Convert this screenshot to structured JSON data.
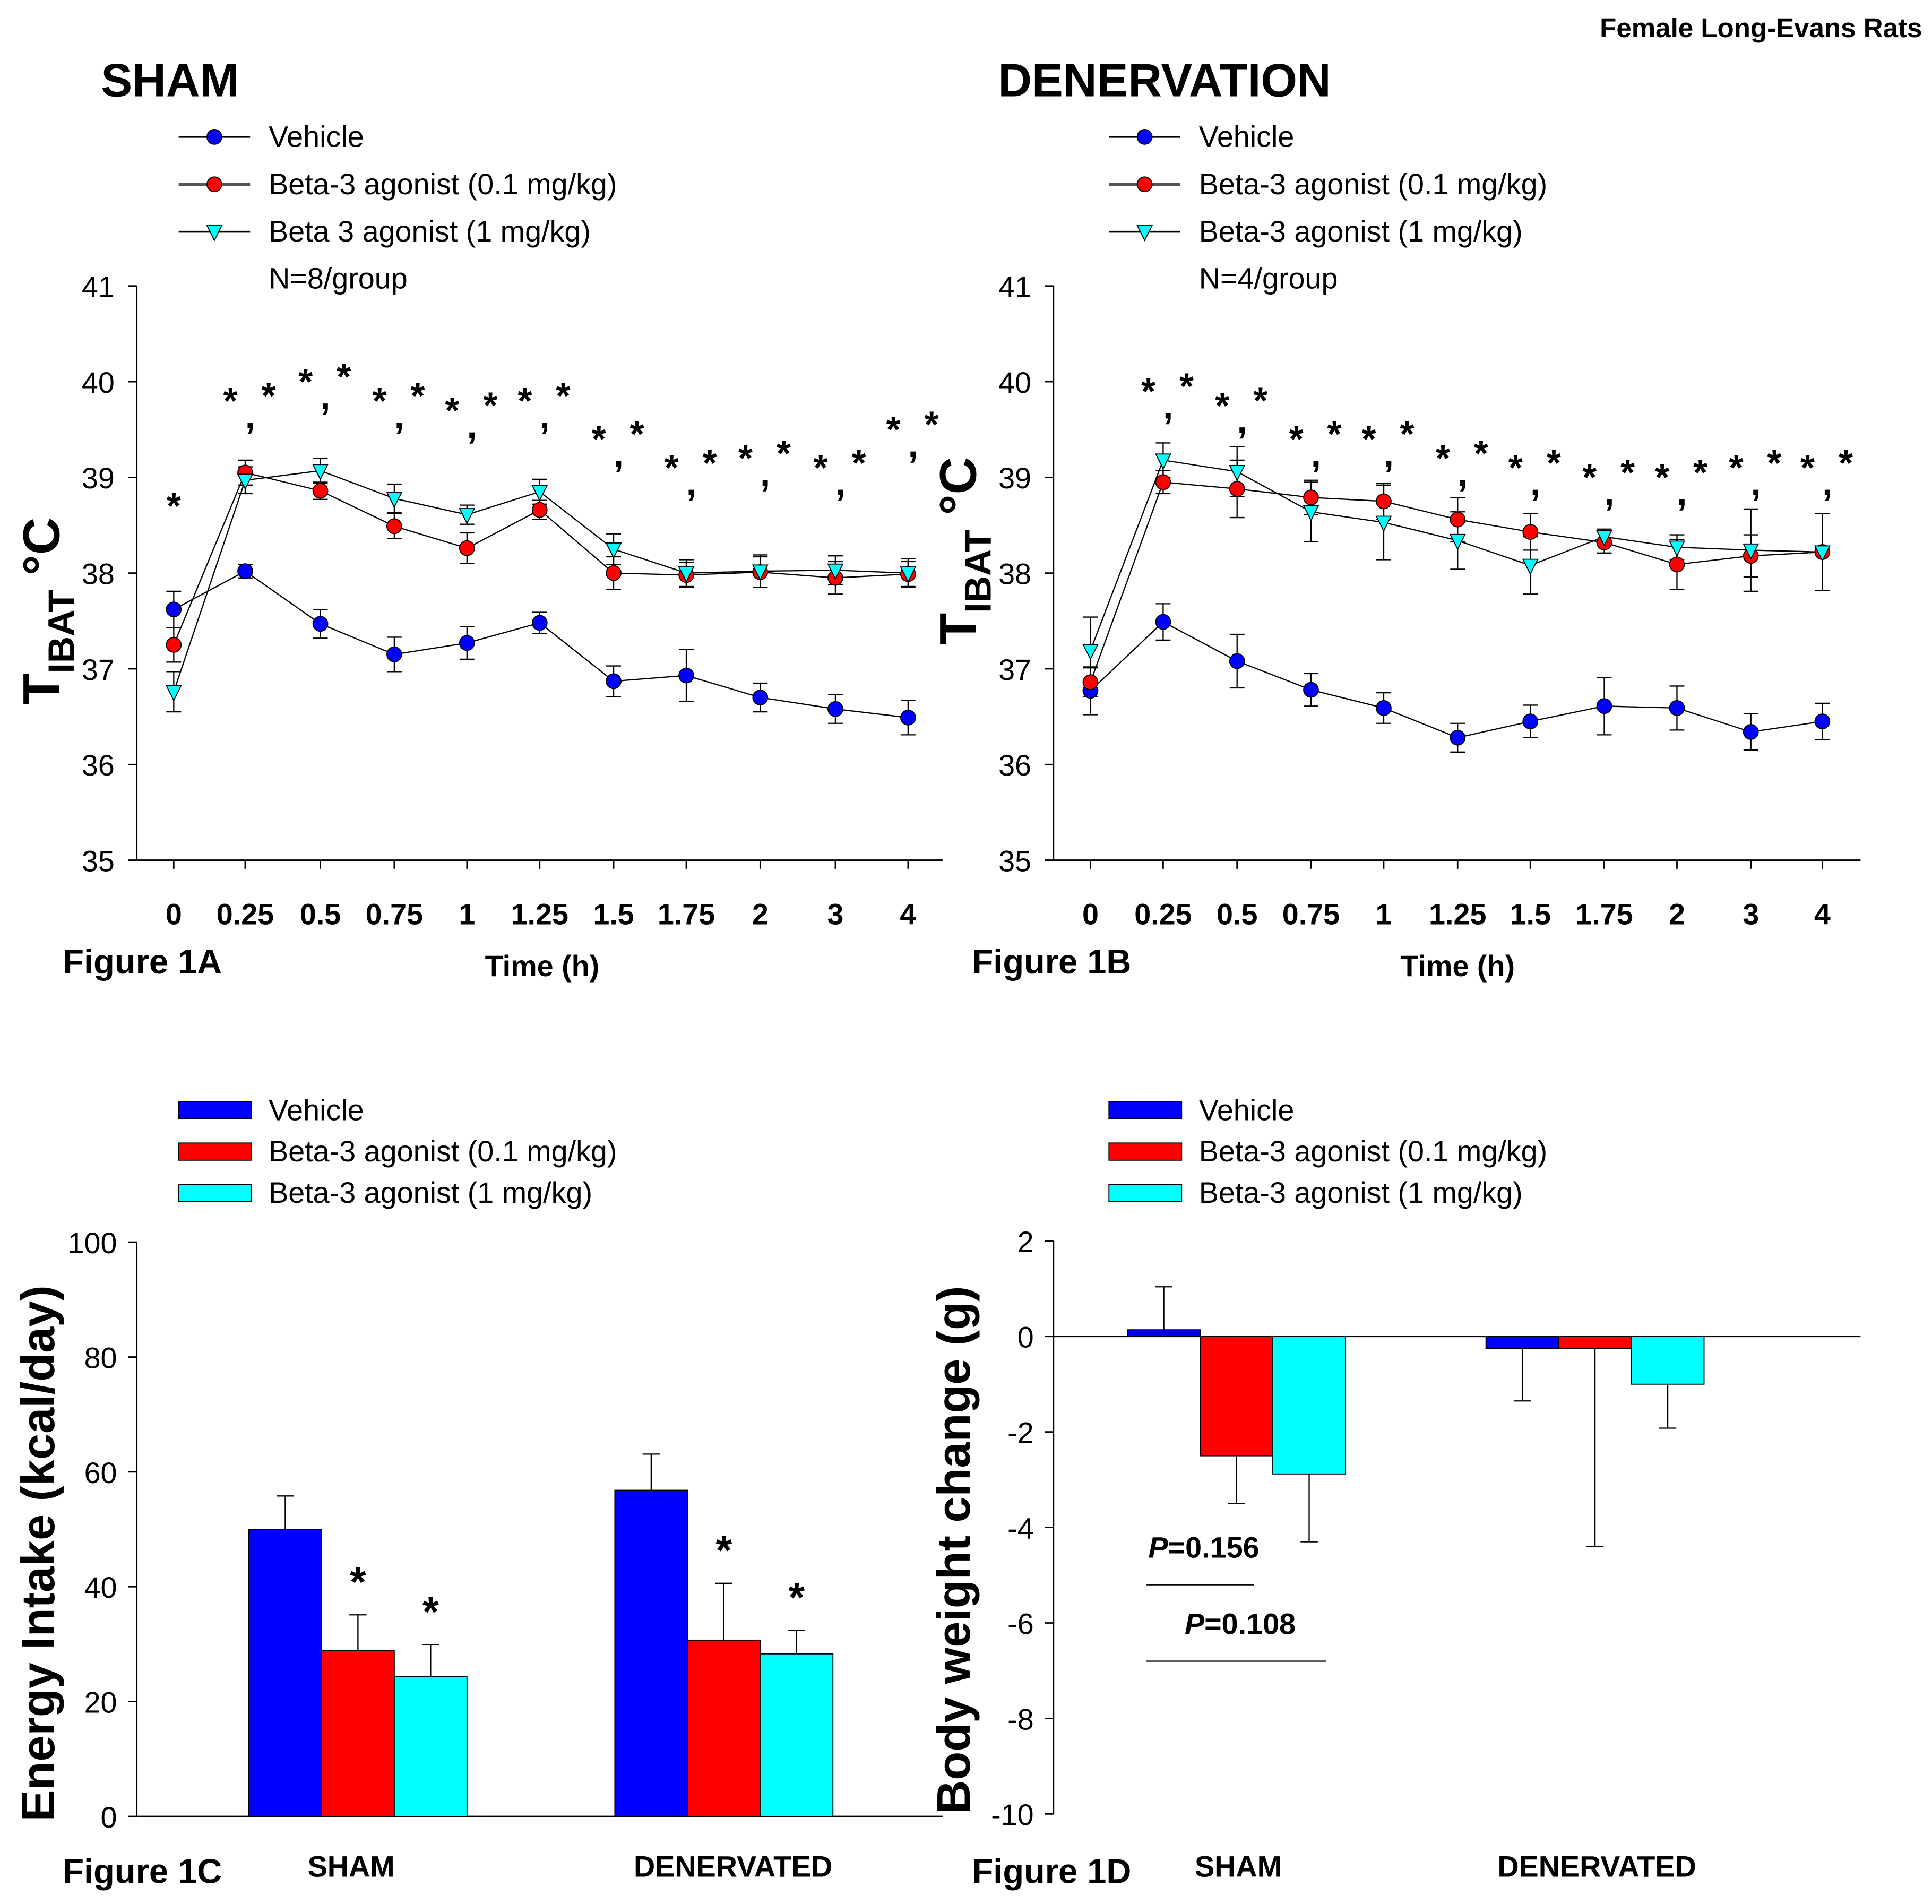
{
  "header": {
    "corner_label": "Female Long-Evans Rats"
  },
  "chart_data": [
    {
      "id": "A",
      "type": "line",
      "panel_title": "SHAM",
      "figure_label": "Figure 1A",
      "xlabel": "Time (h)",
      "ylabel_main": "T",
      "ylabel_sub": "IBAT",
      "ylabel_unit": " °C",
      "note": "N=8/group",
      "categories": [
        "0",
        "0.25",
        "0.5",
        "0.75",
        "1",
        "1.25",
        "1.5",
        "1.75",
        "2",
        "3",
        "4"
      ],
      "ylim": [
        35,
        41
      ],
      "yticks": [
        "35",
        "36",
        "37",
        "38",
        "39",
        "40",
        "41"
      ],
      "series": [
        {
          "name": "Vehicle",
          "marker": "circle",
          "color": "#0000ff",
          "values": [
            37.62,
            38.02,
            37.47,
            37.15,
            37.27,
            37.48,
            36.87,
            36.93,
            36.7,
            36.58,
            36.49
          ],
          "errors": [
            0.19,
            0.07,
            0.15,
            0.18,
            0.17,
            0.11,
            0.16,
            0.27,
            0.15,
            0.15,
            0.18
          ]
        },
        {
          "name": "Beta-3 agonist (0.1 mg/kg)",
          "marker": "circle",
          "color": "#ff0000",
          "values": [
            37.25,
            39.05,
            38.86,
            38.49,
            38.26,
            38.66,
            38.0,
            37.98,
            38.01,
            37.95,
            37.99
          ],
          "errors": [
            0.18,
            0.13,
            0.09,
            0.13,
            0.16,
            0.1,
            0.17,
            0.13,
            0.16,
            0.17,
            0.13
          ]
        },
        {
          "name": "Beta 3 agonist (1 mg/kg)",
          "marker": "triangle-down",
          "color": "#00ffff",
          "values": [
            36.76,
            38.97,
            39.07,
            38.78,
            38.61,
            38.85,
            38.25,
            38.0,
            38.02,
            38.03,
            38.0
          ],
          "errors": [
            0.21,
            0.14,
            0.13,
            0.15,
            0.1,
            0.13,
            0.16,
            0.14,
            0.17,
            0.15,
            0.15
          ]
        }
      ],
      "significance": [
        {
          "x": "0",
          "marks": [
            "*"
          ],
          "level": 38.8
        },
        {
          "x": "0.25",
          "marks": [
            "*",
            ",",
            "*"
          ],
          "level": 39.9
        },
        {
          "x": "0.5",
          "marks": [
            "*",
            ",",
            "*"
          ],
          "level": 40.1
        },
        {
          "x": "0.75",
          "marks": [
            "*",
            ",",
            "*"
          ],
          "level": 39.9
        },
        {
          "x": "1",
          "marks": [
            "*",
            ",",
            "*"
          ],
          "level": 39.8
        },
        {
          "x": "1.25",
          "marks": [
            "*",
            ",",
            "*"
          ],
          "level": 39.9
        },
        {
          "x": "1.5",
          "marks": [
            "*",
            ",",
            "*"
          ],
          "level": 39.5
        },
        {
          "x": "1.75",
          "marks": [
            "*",
            ",",
            "*"
          ],
          "level": 39.2
        },
        {
          "x": "2",
          "marks": [
            "*",
            ",",
            "*"
          ],
          "level": 39.3
        },
        {
          "x": "3",
          "marks": [
            "*",
            ",",
            "*"
          ],
          "level": 39.2
        },
        {
          "x": "4",
          "marks": [
            "*",
            ",",
            "*"
          ],
          "level": 39.6
        }
      ]
    },
    {
      "id": "B",
      "type": "line",
      "panel_title": "DENERVATION",
      "figure_label": "Figure 1B",
      "xlabel": "Time (h)",
      "ylabel_main": "T",
      "ylabel_sub": "IBAT",
      "ylabel_unit": " °C",
      "note": "N=4/group",
      "categories": [
        "0",
        "0.25",
        "0.5",
        "0.75",
        "1",
        "1.25",
        "1.5",
        "1.75",
        "2",
        "3",
        "4"
      ],
      "ylim": [
        35,
        41
      ],
      "yticks": [
        "35",
        "36",
        "37",
        "38",
        "39",
        "40",
        "41"
      ],
      "series": [
        {
          "name": "Vehicle",
          "marker": "circle",
          "color": "#0000ff",
          "values": [
            36.77,
            37.49,
            37.08,
            36.78,
            36.59,
            36.28,
            36.45,
            36.61,
            36.59,
            36.34,
            36.45
          ],
          "errors": [
            0.25,
            0.19,
            0.28,
            0.17,
            0.16,
            0.15,
            0.17,
            0.3,
            0.23,
            0.19,
            0.19
          ]
        },
        {
          "name": "Beta-3 agonist (0.1 mg/kg)",
          "marker": "circle",
          "color": "#ff0000",
          "values": [
            36.86,
            38.95,
            38.88,
            38.79,
            38.75,
            38.56,
            38.43,
            38.32,
            38.09,
            38.18,
            38.22
          ],
          "errors": [
            0.15,
            0.12,
            0.3,
            0.18,
            0.19,
            0.23,
            0.19,
            0.11,
            0.26,
            0.22,
            0.4
          ]
        },
        {
          "name": "Beta-3 agonist (1 mg/kg)",
          "marker": "triangle-down",
          "color": "#00ffff",
          "values": [
            37.19,
            39.18,
            39.06,
            38.64,
            38.53,
            38.34,
            38.08,
            38.38,
            38.27,
            38.24,
            38.22
          ],
          "errors": [
            0.35,
            0.18,
            0.26,
            0.31,
            0.39,
            0.3,
            0.3,
            0.08,
            0.13,
            0.43,
            0.4
          ]
        }
      ],
      "significance": [
        {
          "x": "0.25",
          "marks": [
            "*",
            ",",
            "*"
          ],
          "level": 40.0
        },
        {
          "x": "0.5",
          "marks": [
            "*",
            ",",
            "*"
          ],
          "level": 39.85
        },
        {
          "x": "0.75",
          "marks": [
            "*",
            ",",
            "*"
          ],
          "level": 39.5
        },
        {
          "x": "1",
          "marks": [
            "*",
            ",",
            "*"
          ],
          "level": 39.5
        },
        {
          "x": "1.25",
          "marks": [
            "*",
            ",",
            "*"
          ],
          "level": 39.3
        },
        {
          "x": "1.5",
          "marks": [
            "*",
            ",",
            "*"
          ],
          "level": 39.2
        },
        {
          "x": "1.75",
          "marks": [
            "*",
            ",",
            "*"
          ],
          "level": 39.1
        },
        {
          "x": "2",
          "marks": [
            "*",
            ",",
            "*"
          ],
          "level": 39.1
        },
        {
          "x": "3",
          "marks": [
            "*",
            ",",
            "*"
          ],
          "level": 39.2
        },
        {
          "x": "4",
          "marks": [
            "*",
            ",",
            "*"
          ],
          "level": 39.2
        }
      ]
    },
    {
      "id": "C",
      "type": "bar",
      "figure_label": "Figure 1C",
      "ylabel": "Energy Intake (kcal/day)",
      "categories": [
        "SHAM",
        "DENERVATED"
      ],
      "ylim": [
        0,
        100
      ],
      "yticks": [
        "0",
        "20",
        "40",
        "60",
        "80",
        "100"
      ],
      "series": [
        {
          "name": "Vehicle",
          "color": "#0000ff",
          "values": [
            50.0,
            56.8
          ],
          "errors": [
            5.8,
            6.3
          ]
        },
        {
          "name": "Beta-3 agonist (0.1 mg/kg)",
          "color": "#ff0000",
          "values": [
            28.9,
            30.7
          ],
          "errors": [
            6.2,
            9.9
          ]
        },
        {
          "name": "Beta-3 agonist (1 mg/kg)",
          "color": "#00ffff",
          "values": [
            24.4,
            28.3
          ],
          "errors": [
            5.5,
            4.1
          ]
        }
      ],
      "annotations": [
        {
          "category": "SHAM",
          "series": 1,
          "text": "*"
        },
        {
          "category": "SHAM",
          "series": 2,
          "text": "*"
        },
        {
          "category": "DENERVATED",
          "series": 1,
          "text": "*"
        },
        {
          "category": "DENERVATED",
          "series": 2,
          "text": "*"
        }
      ]
    },
    {
      "id": "D",
      "type": "bar",
      "figure_label": "Figure 1D",
      "ylabel": "Body weight change (g)",
      "categories": [
        "SHAM",
        "DENERVATED"
      ],
      "ylim": [
        -10,
        2
      ],
      "yticks": [
        "-10",
        "-8",
        "-6",
        "-4",
        "-2",
        "0",
        "2"
      ],
      "series": [
        {
          "name": "Vehicle",
          "color": "#0000ff",
          "values": [
            0.14,
            -0.25
          ],
          "errors": [
            0.9,
            1.1
          ]
        },
        {
          "name": "Beta-3 agonist (0.1 mg/kg)",
          "color": "#ff0000",
          "values": [
            -2.5,
            -0.25
          ],
          "errors": [
            1.0,
            4.15
          ]
        },
        {
          "name": "Beta-3 agonist (1 mg/kg)",
          "color": "#00ffff",
          "values": [
            -2.88,
            -1.0
          ],
          "errors": [
            1.42,
            0.92
          ]
        }
      ],
      "annotations": [
        {
          "text_italic": "P",
          "text": "=0.156",
          "from_series": 0,
          "to_series": 1,
          "level": -5.2
        },
        {
          "text_italic": "P",
          "text": "=0.108",
          "from_series": 0,
          "to_series": 2,
          "level": -6.8
        }
      ]
    }
  ]
}
